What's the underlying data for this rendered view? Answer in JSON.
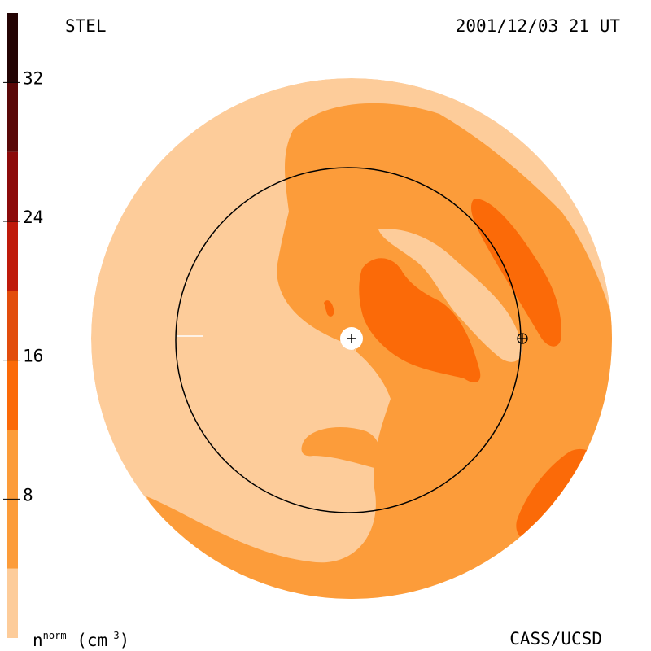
{
  "header": {
    "observatory": "STEL",
    "timestamp": "2001/12/03 21 UT"
  },
  "footer": {
    "credit": "CASS/UCSD",
    "unit_quantity": "n",
    "unit_superscript": "norm",
    "unit_open": "(cm",
    "unit_exponent": "-3",
    "unit_close": ")"
  },
  "chart_data": {
    "type": "heatmap",
    "colorbar": {
      "ticks": [
        8,
        16,
        24,
        32
      ],
      "levels": [
        {
          "min": 0,
          "max": 4,
          "color": "#FDCC9A"
        },
        {
          "min": 4,
          "max": 12,
          "color": "#FC9C3A"
        },
        {
          "min": 12,
          "max": 16,
          "color": "#FB6A08"
        },
        {
          "min": 16,
          "max": 20,
          "color": "#E24D0C"
        },
        {
          "min": 20,
          "max": 24,
          "color": "#BF1A0A"
        },
        {
          "min": 24,
          "max": 28,
          "color": "#8C0A0A"
        },
        {
          "min": 28,
          "max": 32,
          "color": "#5A0808"
        },
        {
          "min": 32,
          "max": 36,
          "color": "#240404"
        }
      ]
    },
    "markers": [
      "sun-center",
      "earth"
    ],
    "reference_circle": "1 AU"
  }
}
